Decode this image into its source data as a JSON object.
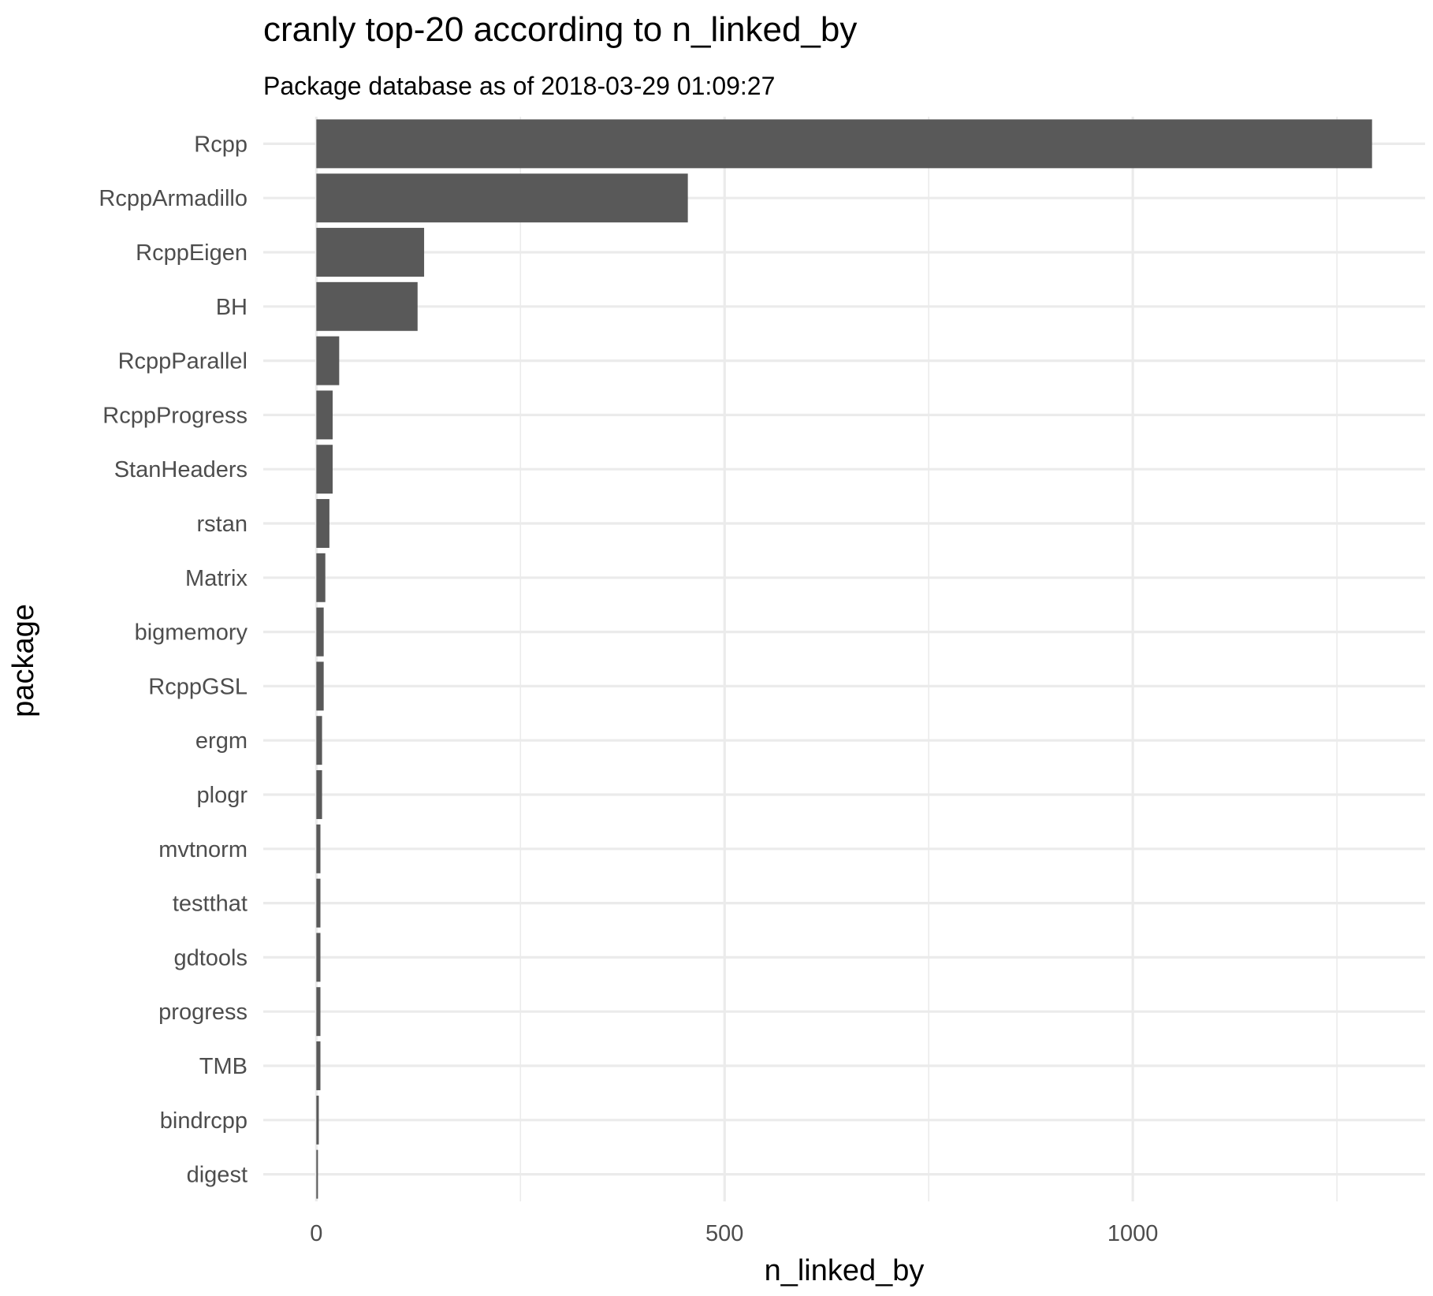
{
  "chart_data": {
    "type": "bar",
    "orientation": "horizontal",
    "title": "cranly top-20 according to n_linked_by",
    "subtitle": "Package database as of 2018-03-29 01:09:27",
    "xlabel": "n_linked_by",
    "ylabel": "package",
    "categories": [
      "Rcpp",
      "RcppArmadillo",
      "RcppEigen",
      "BH",
      "RcppParallel",
      "RcppProgress",
      "StanHeaders",
      "rstan",
      "Matrix",
      "bigmemory",
      "RcppGSL",
      "ergm",
      "plogr",
      "mvtnorm",
      "testthat",
      "gdtools",
      "progress",
      "TMB",
      "bindrcpp",
      "digest"
    ],
    "values": [
      1293,
      455,
      132,
      124,
      28,
      20,
      20,
      16,
      11,
      9,
      9,
      7,
      7,
      5,
      5,
      5,
      5,
      5,
      3,
      2
    ],
    "xlim": [
      -65,
      1358
    ],
    "xticks": [
      0,
      500,
      1000
    ],
    "xminor": [
      250,
      750,
      1250
    ],
    "bar_color": "#595959",
    "grid_color": "#ebebeb",
    "grid": true,
    "legend": "none"
  }
}
